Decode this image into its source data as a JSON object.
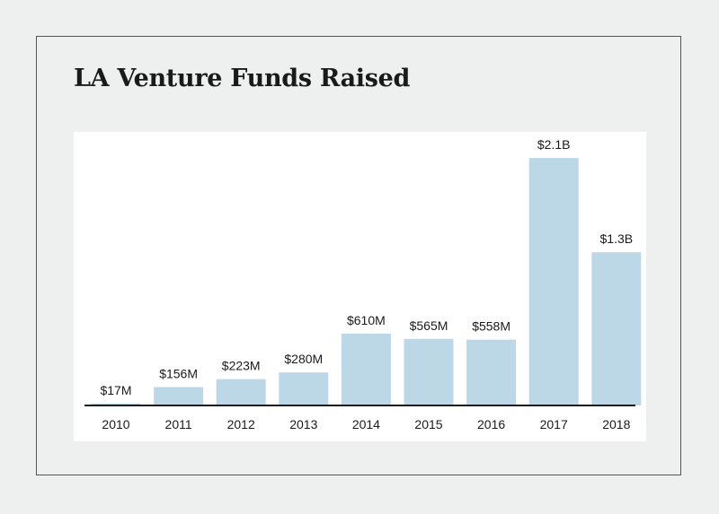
{
  "title": "LA Venture Funds Raised",
  "colors": {
    "bar": "#bcd7e6",
    "background": "#eef0ef",
    "panel": "#ffffff",
    "axis": "#1a1a1a"
  },
  "chart_data": {
    "type": "bar",
    "title": "LA Venture Funds Raised",
    "xlabel": "",
    "ylabel": "",
    "unit": "$M",
    "grid": false,
    "legend": "none",
    "ylim": [
      0,
      2200
    ],
    "categories": [
      "2010",
      "2011",
      "2012",
      "2013",
      "2014",
      "2015",
      "2016",
      "2017",
      "2018"
    ],
    "values": [
      17,
      156,
      223,
      280,
      610,
      565,
      558,
      2100,
      1300
    ],
    "value_labels": [
      "$17M",
      "$156M",
      "$223M",
      "$280M",
      "$610M",
      "$565M",
      "$558M",
      "$2.1B",
      "$1.3B"
    ]
  }
}
